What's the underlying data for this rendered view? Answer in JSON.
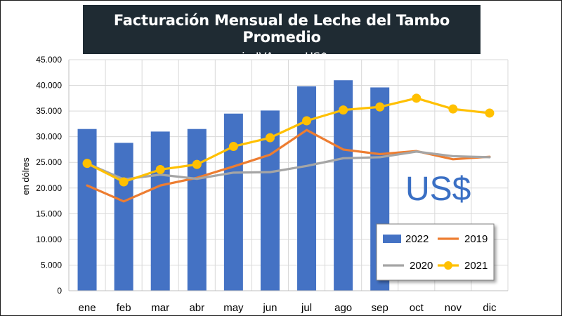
{
  "header": {
    "title": "Facturación Mensual de Leche del Tambo Promedio",
    "subtitle": "- sin IVA y en US$ -"
  },
  "chart_data": {
    "type": "bar",
    "title": "Facturación Mensual de Leche del Tambo Promedio",
    "subtitle": "- sin IVA y en US$ -",
    "xlabel": "",
    "ylabel": "en dólres",
    "ylim": [
      0,
      45000
    ],
    "yticks": [
      0,
      5000,
      10000,
      15000,
      20000,
      25000,
      30000,
      35000,
      40000,
      45000
    ],
    "ytick_labels": [
      "0",
      "5.000",
      "10.000",
      "15.000",
      "20.000",
      "25.000",
      "30.000",
      "35.000",
      "40.000",
      "45.000"
    ],
    "categories": [
      "ene",
      "feb",
      "mar",
      "abr",
      "may",
      "jun",
      "jul",
      "ago",
      "sep",
      "oct",
      "nov",
      "dic"
    ],
    "annotation": "US$",
    "grid": true,
    "legend_position": "bottom-right",
    "series": [
      {
        "name": "2022",
        "type": "bar",
        "color": "#4472c4",
        "values": [
          31500,
          28800,
          31000,
          31500,
          34500,
          35100,
          39800,
          41000,
          39600,
          null,
          null,
          null
        ]
      },
      {
        "name": "2019",
        "type": "line",
        "color": "#ed7d31",
        "marker": false,
        "values": [
          20500,
          17400,
          20500,
          22000,
          24200,
          26500,
          31300,
          27500,
          26600,
          27200,
          25600,
          26100
        ]
      },
      {
        "name": "2020",
        "type": "line",
        "color": "#a5a5a5",
        "marker": false,
        "values": [
          24800,
          21700,
          22600,
          21800,
          23000,
          23100,
          24300,
          25800,
          26000,
          27100,
          26200,
          26000
        ]
      },
      {
        "name": "2021",
        "type": "line",
        "color": "#ffc000",
        "marker": true,
        "values": [
          24800,
          21200,
          23600,
          24600,
          28100,
          29800,
          33100,
          35200,
          35800,
          37500,
          35400,
          34600
        ]
      }
    ]
  }
}
